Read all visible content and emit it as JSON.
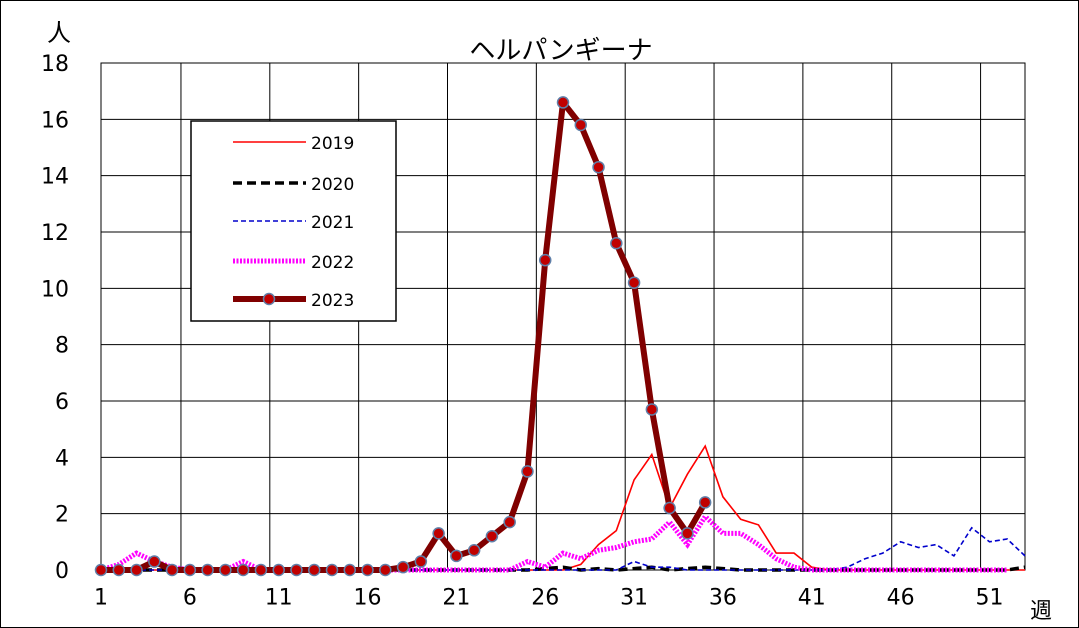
{
  "chart_data": {
    "type": "line",
    "title": "ヘルパンギーナ",
    "ylabel": "人",
    "xlabel": "週",
    "ylim": [
      0,
      18
    ],
    "yticks": [
      "0",
      "2",
      "4",
      "6",
      "8",
      "10",
      "12",
      "14",
      "16",
      "18"
    ],
    "xlim": [
      1,
      53
    ],
    "xticks": [
      "1",
      "6",
      "11",
      "16",
      "21",
      "26",
      "31",
      "36",
      "41",
      "46",
      "51"
    ],
    "grid": true,
    "legend_position": "top-left",
    "series": [
      {
        "name": "2019",
        "color": "#ff0000",
        "style": "thin-solid",
        "x": [
          1,
          2,
          3,
          4,
          5,
          6,
          7,
          8,
          9,
          10,
          11,
          12,
          13,
          14,
          15,
          16,
          17,
          18,
          19,
          20,
          21,
          22,
          23,
          24,
          25,
          26,
          27,
          28,
          29,
          30,
          31,
          32,
          33,
          34,
          35,
          36,
          37,
          38,
          39,
          40,
          41,
          42,
          43,
          44,
          45,
          46,
          47,
          48,
          49,
          50,
          51,
          52,
          53
        ],
        "values": [
          0,
          0,
          0,
          0,
          0,
          0,
          0,
          0,
          0,
          0,
          0,
          0,
          0,
          0,
          0,
          0,
          0,
          0,
          0,
          0,
          0,
          0,
          0,
          0,
          0,
          0,
          0,
          0.2,
          0.9,
          1.4,
          3.2,
          4.1,
          2.2,
          3.4,
          4.4,
          2.6,
          1.8,
          1.6,
          0.6,
          0.6,
          0.1,
          0,
          0,
          0,
          0,
          0,
          0,
          0,
          0,
          0,
          0,
          0,
          0
        ]
      },
      {
        "name": "2020",
        "color": "#000000",
        "style": "thick-dashed",
        "x": [
          1,
          2,
          3,
          4,
          5,
          6,
          7,
          8,
          9,
          10,
          11,
          12,
          13,
          14,
          15,
          16,
          17,
          18,
          19,
          20,
          21,
          22,
          23,
          24,
          25,
          26,
          27,
          28,
          29,
          30,
          31,
          32,
          33,
          34,
          35,
          36,
          37,
          38,
          39,
          40,
          41,
          42,
          43,
          44,
          45,
          46,
          47,
          48,
          49,
          50,
          51,
          52,
          53
        ],
        "values": [
          0,
          0,
          0,
          0,
          0,
          0,
          0,
          0,
          0,
          0,
          0,
          0,
          0,
          0,
          0,
          0,
          0,
          0,
          0,
          0,
          0,
          0,
          0,
          0,
          0,
          0.05,
          0.1,
          0,
          0.05,
          0,
          0.05,
          0.1,
          0,
          0.05,
          0.1,
          0.05,
          0,
          0,
          0,
          0,
          0,
          0,
          0,
          0,
          0,
          0,
          0,
          0,
          0,
          0,
          0,
          0,
          0.1
        ]
      },
      {
        "name": "2021",
        "color": "#0000cc",
        "style": "thin-dashed",
        "x": [
          1,
          2,
          3,
          4,
          5,
          6,
          7,
          8,
          9,
          10,
          11,
          12,
          13,
          14,
          15,
          16,
          17,
          18,
          19,
          20,
          21,
          22,
          23,
          24,
          25,
          26,
          27,
          28,
          29,
          30,
          31,
          32,
          33,
          34,
          35,
          36,
          37,
          38,
          39,
          40,
          41,
          42,
          43,
          44,
          45,
          46,
          47,
          48,
          49,
          50,
          51,
          52,
          53
        ],
        "values": [
          0,
          0,
          0,
          0,
          0,
          0,
          0,
          0,
          0,
          0,
          0,
          0,
          0,
          0,
          0,
          0,
          0,
          0,
          0,
          0,
          0,
          0,
          0,
          0,
          0,
          0,
          0,
          0,
          0,
          0,
          0.3,
          0.1,
          0.1,
          0,
          0,
          0,
          0,
          0,
          0,
          0,
          0,
          0,
          0.1,
          0.4,
          0.6,
          1.0,
          0.8,
          0.9,
          0.5,
          1.5,
          1.0,
          1.1,
          0.5
        ]
      },
      {
        "name": "2022",
        "color": "#ff00ff",
        "style": "thick-dotted",
        "x": [
          1,
          2,
          3,
          4,
          5,
          6,
          7,
          8,
          9,
          10,
          11,
          12,
          13,
          14,
          15,
          16,
          17,
          18,
          19,
          20,
          21,
          22,
          23,
          24,
          25,
          26,
          27,
          28,
          29,
          30,
          31,
          32,
          33,
          34,
          35,
          36,
          37,
          38,
          39,
          40,
          41,
          42,
          43,
          44,
          45,
          46,
          47,
          48,
          49,
          50,
          51,
          52,
          53
        ],
        "values": [
          0,
          0.2,
          0.6,
          0.3,
          0.1,
          0,
          0,
          0,
          0.3,
          0,
          0,
          0,
          0,
          0,
          0,
          0,
          0,
          0,
          0,
          0,
          0,
          0,
          0,
          0,
          0.3,
          0.1,
          0.6,
          0.4,
          0.7,
          0.8,
          1.0,
          1.1,
          1.7,
          0.9,
          1.9,
          1.3,
          1.3,
          0.9,
          0.4,
          0.1,
          0,
          0,
          0,
          0,
          0,
          0,
          0,
          0,
          0,
          0,
          0,
          0,
          null
        ]
      },
      {
        "name": "2023",
        "color": "#800000",
        "style": "thick-marker",
        "x": [
          1,
          2,
          3,
          4,
          5,
          6,
          7,
          8,
          9,
          10,
          11,
          12,
          13,
          14,
          15,
          16,
          17,
          18,
          19,
          20,
          21,
          22,
          23,
          24,
          25,
          26,
          27,
          28,
          29,
          30,
          31,
          32,
          33,
          34,
          35
        ],
        "values": [
          0,
          0,
          0,
          0.3,
          0,
          0,
          0,
          0,
          0,
          0,
          0,
          0,
          0,
          0,
          0,
          0,
          0,
          0.1,
          0.3,
          1.3,
          0.5,
          0.7,
          1.2,
          1.7,
          3.5,
          11.0,
          16.6,
          15.8,
          14.3,
          11.6,
          10.2,
          5.7,
          2.2,
          1.3,
          2.4
        ]
      }
    ]
  }
}
